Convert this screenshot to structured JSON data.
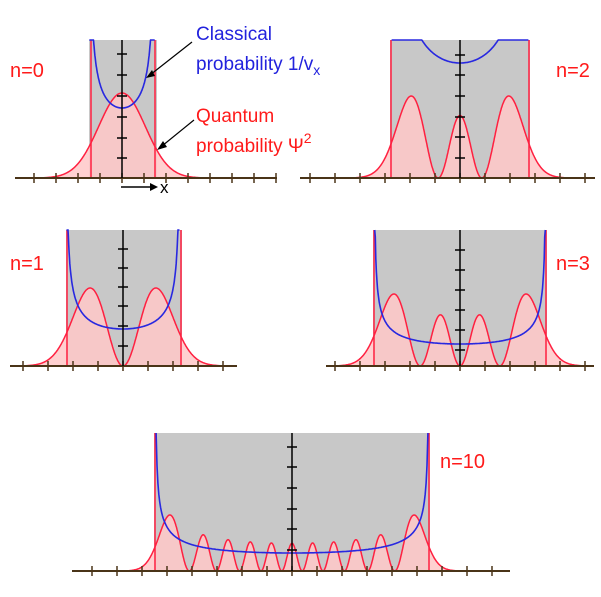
{
  "colors": {
    "classical": "#2828e0",
    "quantum": "#ff2040",
    "quantum_fill": "#ffc8c8",
    "overlap_fill": "#c8c8f0",
    "region_fill": "#c8c8c8",
    "axis": "#4a3418"
  },
  "annotations": {
    "classical_line1": "Classical",
    "classical_line2_text": "probability 1/v",
    "classical_sub": "x",
    "quantum_line1": "Quantum",
    "quantum_line2_text": "probability Ψ",
    "quantum_sup": "2",
    "x_label": "x"
  },
  "panels": [
    {
      "id": "n0",
      "label": "n=0",
      "n": 0
    },
    {
      "id": "n1",
      "label": "n=1",
      "n": 1
    },
    {
      "id": "n2",
      "label": "n=2",
      "n": 2
    },
    {
      "id": "n3",
      "label": "n=3",
      "n": 3
    },
    {
      "id": "n10",
      "label": "n=10",
      "n": 10
    }
  ]
}
